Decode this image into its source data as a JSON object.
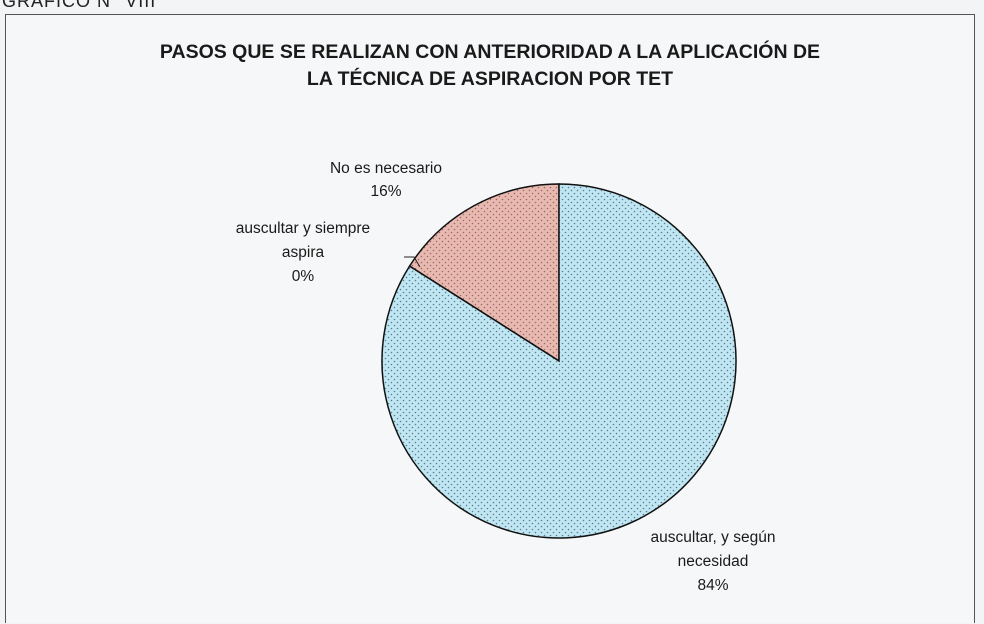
{
  "header": {
    "caption": "GRAFICO N° VIII"
  },
  "chart_data": {
    "type": "pie",
    "title_lines": [
      "PASOS QUE SE REALIZAN CON ANTERIORIDAD A LA APLICACIÓN DE",
      "LA TÉCNICA DE ASPIRACION POR  TET"
    ],
    "slices": [
      {
        "label_lines": [
          "No es necesario",
          "16%"
        ],
        "value": 16,
        "color": "#e8b9b0",
        "pattern": "dots"
      },
      {
        "label_lines": [
          "auscultar y siempre",
          "aspira",
          "0%"
        ],
        "value": 0,
        "color": "#d9d9d9",
        "pattern": "dots"
      },
      {
        "label_lines": [
          "auscultar, y según",
          "necesidad",
          "84%"
        ],
        "value": 84,
        "color": "#bfe6f2",
        "pattern": "dots"
      }
    ],
    "legend": "none",
    "start": "top",
    "direction": "counterclockwise"
  }
}
